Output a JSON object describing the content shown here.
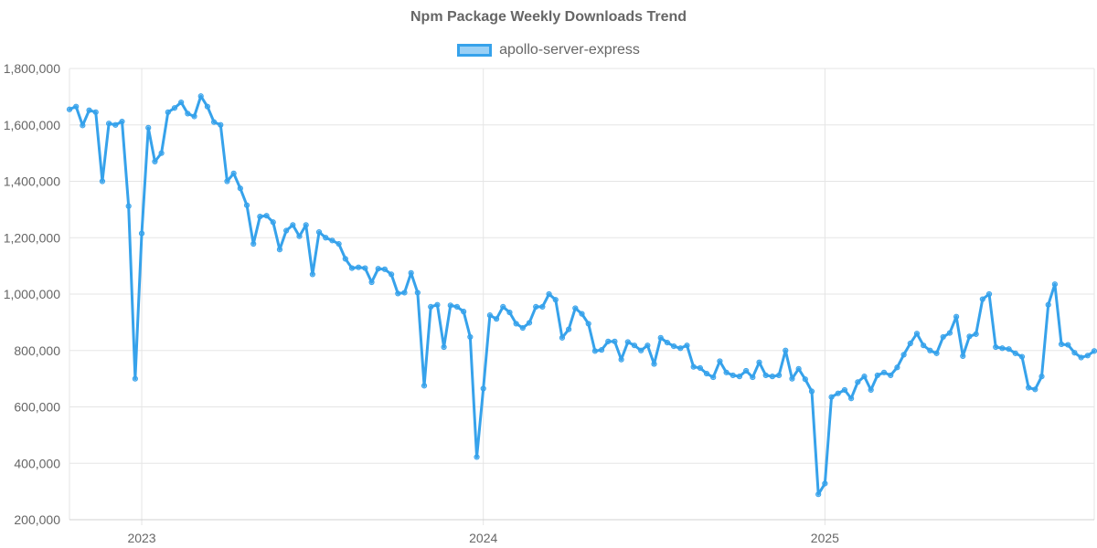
{
  "chart_data": {
    "type": "line",
    "title": "Npm Package Weekly Downloads Trend",
    "xlabel": "",
    "ylabel": "",
    "ylim": [
      200000,
      1800000
    ],
    "y_ticks": [
      200000,
      400000,
      600000,
      800000,
      1000000,
      1200000,
      1400000,
      1600000,
      1800000
    ],
    "y_tick_labels": [
      "200,000",
      "400,000",
      "600,000",
      "800,000",
      "1,000,000",
      "1,200,000",
      "1,400,000",
      "1,600,000",
      "1,800,000"
    ],
    "x_ticks": [
      {
        "label": "2023",
        "index": 11
      },
      {
        "label": "2024",
        "index": 63
      },
      {
        "label": "2025",
        "index": 115
      }
    ],
    "grid": true,
    "legend": "top-center",
    "colors": {
      "line": "#36a2eb",
      "fill": "rgba(54,162,235,0.5)",
      "grid": "#e5e5e5",
      "text": "#666666"
    },
    "series": [
      {
        "name": "apollo-server-express",
        "values": [
          1655000,
          1665000,
          1598000,
          1652000,
          1645000,
          1400000,
          1605000,
          1600000,
          1612000,
          1312000,
          700000,
          1215000,
          1590000,
          1470000,
          1500000,
          1645000,
          1660000,
          1680000,
          1640000,
          1630000,
          1702000,
          1665000,
          1610000,
          1600000,
          1400000,
          1428000,
          1375000,
          1315000,
          1178000,
          1275000,
          1278000,
          1255000,
          1158000,
          1225000,
          1245000,
          1205000,
          1245000,
          1070000,
          1220000,
          1200000,
          1190000,
          1178000,
          1125000,
          1092000,
          1095000,
          1092000,
          1042000,
          1090000,
          1088000,
          1070000,
          1002000,
          1005000,
          1075000,
          1005000,
          675000,
          955000,
          962000,
          812000,
          960000,
          955000,
          938000,
          848000,
          422000,
          665000,
          925000,
          912000,
          955000,
          935000,
          895000,
          880000,
          898000,
          955000,
          955000,
          1000000,
          980000,
          845000,
          875000,
          950000,
          930000,
          895000,
          798000,
          802000,
          832000,
          832000,
          768000,
          830000,
          818000,
          800000,
          818000,
          752000,
          845000,
          828000,
          815000,
          808000,
          818000,
          742000,
          738000,
          718000,
          705000,
          762000,
          722000,
          712000,
          708000,
          728000,
          705000,
          758000,
          712000,
          708000,
          712000,
          800000,
          700000,
          735000,
          698000,
          655000,
          290000,
          328000,
          635000,
          648000,
          660000,
          630000,
          688000,
          708000,
          660000,
          712000,
          722000,
          712000,
          740000,
          785000,
          825000,
          860000,
          818000,
          800000,
          790000,
          848000,
          862000,
          920000,
          780000,
          850000,
          858000,
          982000,
          1000000,
          812000,
          808000,
          805000,
          790000,
          778000,
          668000,
          662000,
          708000,
          962000,
          1035000,
          822000,
          820000,
          792000,
          775000,
          782000,
          798000
        ]
      }
    ]
  }
}
